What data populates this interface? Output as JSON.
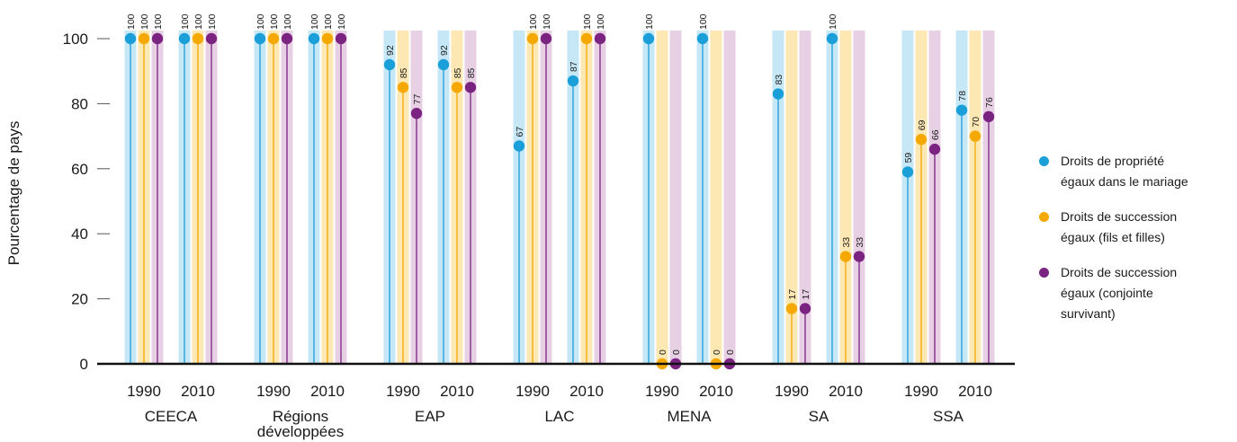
{
  "chart_data": {
    "type": "scatter",
    "ylabel": "Pourcentage de pays",
    "ylim": [
      0,
      100
    ],
    "yticks": [
      0,
      20,
      40,
      60,
      80,
      100
    ],
    "groups": [
      {
        "name": "CEECA",
        "periods": [
          "1990",
          "2010"
        ]
      },
      {
        "name": "Régions développées",
        "periods": [
          "1990",
          "2010"
        ]
      },
      {
        "name": "EAP",
        "periods": [
          "1990",
          "2010"
        ]
      },
      {
        "name": "LAC",
        "periods": [
          "1990",
          "2010"
        ]
      },
      {
        "name": "MENA",
        "periods": [
          "1990",
          "2010"
        ]
      },
      {
        "name": "SA",
        "periods": [
          "1990",
          "2010"
        ]
      },
      {
        "name": "SSA",
        "periods": [
          "1990",
          "2010"
        ]
      }
    ],
    "series": [
      {
        "name": "Droits de propriété égaux dans le mariage",
        "color": "#1a9fd8",
        "values": [
          100,
          100,
          100,
          100,
          92,
          92,
          67,
          87,
          100,
          100,
          83,
          100,
          59,
          78
        ]
      },
      {
        "name": "Droits de succession égaux (fils et filles)",
        "color": "#f5a800",
        "values": [
          100,
          100,
          100,
          100,
          85,
          85,
          100,
          100,
          0,
          0,
          17,
          33,
          69,
          70
        ]
      },
      {
        "name": "Droits de succession égaux (conjointe survivant)",
        "color": "#7b2381",
        "values": [
          100,
          100,
          100,
          100,
          77,
          85,
          100,
          100,
          0,
          0,
          17,
          33,
          66,
          76
        ]
      }
    ]
  },
  "legend": {
    "items": [
      {
        "label": "Droits de propriété\négaux dans le mariage",
        "color": "#1a9fd8"
      },
      {
        "label": "Droits de succession\négaux (fils et filles)",
        "color": "#f5a800"
      },
      {
        "label": "Droits de succession\négaux (conjointe\nsurvivant)",
        "color": "#7b2381"
      }
    ]
  }
}
